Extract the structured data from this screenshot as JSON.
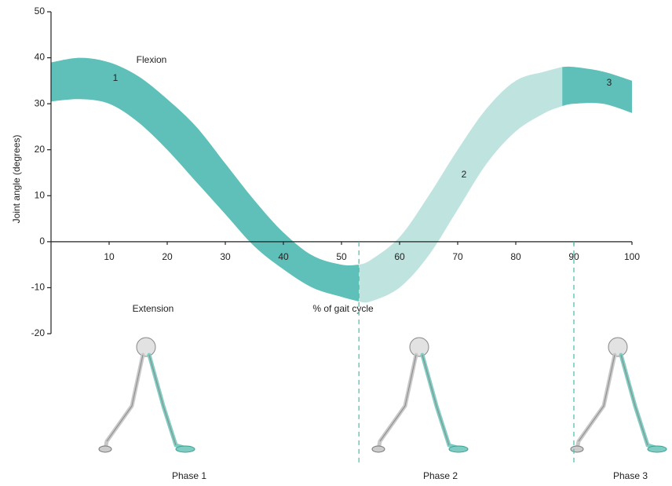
{
  "chart_data": {
    "type": "band",
    "y_label": "Joint angle (degrees)",
    "x_label": "% of gait cycle",
    "annotations": [
      "Flexion",
      "Extension"
    ],
    "xlim": [
      0,
      100
    ],
    "ylim": [
      -20,
      50
    ],
    "xticks": [
      10,
      20,
      30,
      40,
      50,
      60,
      70,
      80,
      90,
      100
    ],
    "yticks": [
      -20,
      -10,
      0,
      10,
      20,
      30,
      40,
      50
    ],
    "phase_lines": [
      53,
      90
    ],
    "phases": [
      "Phase 1",
      "Phase 2",
      "Phase 3"
    ],
    "series": [
      {
        "name": "1",
        "color": "#5ec0b8",
        "x": [
          0,
          5,
          10,
          15,
          20,
          25,
          30,
          35,
          40,
          45,
          50,
          53
        ],
        "upper": [
          39,
          40,
          39,
          36,
          31,
          25,
          17,
          9,
          2,
          -3,
          -5,
          -5
        ],
        "lower": [
          30.5,
          31,
          30,
          26,
          20,
          13,
          6,
          -1,
          -6,
          -10,
          -12,
          -13
        ]
      },
      {
        "name": "2",
        "color": "#bfe4e0",
        "x": [
          53,
          55,
          60,
          65,
          70,
          75,
          80,
          85,
          88
        ],
        "upper": [
          -5,
          -4,
          1,
          10,
          20,
          29,
          35,
          37,
          38
        ],
        "lower": [
          -13,
          -13,
          -10,
          -3,
          7,
          17,
          24,
          28,
          29.5
        ]
      },
      {
        "name": "3",
        "color": "#5ec0b8",
        "x": [
          88,
          90,
          95,
          100
        ],
        "upper": [
          38,
          38,
          37,
          35
        ],
        "lower": [
          29.5,
          30,
          30,
          28
        ]
      }
    ]
  }
}
